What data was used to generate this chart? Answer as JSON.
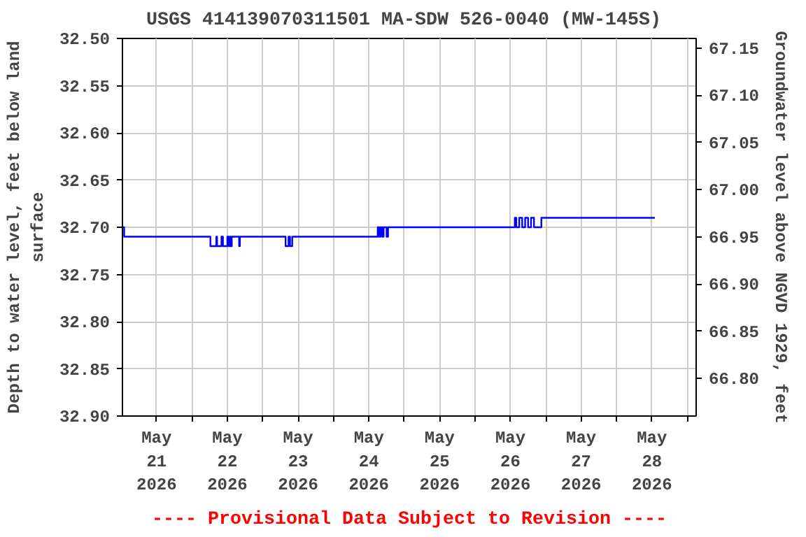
{
  "chart_data": {
    "type": "step",
    "title": "USGS 414139070311501 MA-SDW  526-0040 (MW-145S)",
    "ylabel": "Depth to water level, feet below land\nsurface",
    "y2label": "Groundwater level above NGVD 1929, feet",
    "annotations": [
      "---- Provisional Data Subject to Revision ----"
    ],
    "x": [
      "2026-05-21T00:30",
      "2026-05-21T01:00",
      "2026-05-22T06:00",
      "2026-05-22T06:15",
      "2026-05-22T08:00",
      "2026-05-22T08:15",
      "2026-05-22T08:30",
      "2026-05-22T10:00",
      "2026-05-22T10:30",
      "2026-05-22T12:00",
      "2026-05-22T12:30",
      "2026-05-22T13:00",
      "2026-05-22T13:15",
      "2026-05-22T13:30",
      "2026-05-22T16:00",
      "2026-05-22T16:15",
      "2026-05-23T07:45",
      "2026-05-23T08:45",
      "2026-05-23T09:15",
      "2026-05-23T10:00",
      "2026-05-24T15:00",
      "2026-05-24T15:30",
      "2026-05-24T16:00",
      "2026-05-24T16:30",
      "2026-05-24T17:00",
      "2026-05-24T18:00",
      "2026-05-24T18:30",
      "2026-05-26T13:30",
      "2026-05-26T14:00",
      "2026-05-26T15:00",
      "2026-05-26T16:00",
      "2026-05-26T17:00",
      "2026-05-26T18:00",
      "2026-05-26T19:00",
      "2026-05-26T20:00",
      "2026-05-26T22:30",
      "2026-05-28T13:00"
    ],
    "series": [
      {
        "color": "#0000ff",
        "values": [
          32.7,
          32.71,
          32.71,
          32.72,
          32.72,
          32.71,
          32.72,
          32.71,
          32.72,
          32.71,
          32.72,
          32.71,
          32.72,
          32.71,
          32.72,
          32.71,
          32.72,
          32.71,
          32.72,
          32.71,
          32.7,
          32.71,
          32.7,
          32.71,
          32.7,
          32.71,
          32.7,
          32.69,
          32.7,
          32.69,
          32.7,
          32.69,
          32.7,
          32.69,
          32.7,
          32.69,
          32.69
        ]
      }
    ],
    "xlim": [
      "2026-05-21T00:25",
      "2026-05-29T03:00"
    ],
    "xticks": [
      {
        "value": "2026-05-21T12:00",
        "label": "May\n21\n2026"
      },
      {
        "value": "2026-05-22T00:00",
        "label": null
      },
      {
        "value": "2026-05-22T12:00",
        "label": "May\n22\n2026"
      },
      {
        "value": "2026-05-23T00:00",
        "label": null
      },
      {
        "value": "2026-05-23T12:00",
        "label": "May\n23\n2026"
      },
      {
        "value": "2026-05-24T00:00",
        "label": null
      },
      {
        "value": "2026-05-24T12:00",
        "label": "May\n24\n2026"
      },
      {
        "value": "2026-05-25T00:00",
        "label": null
      },
      {
        "value": "2026-05-25T12:00",
        "label": "May\n25\n2026"
      },
      {
        "value": "2026-05-26T00:00",
        "label": null
      },
      {
        "value": "2026-05-26T12:00",
        "label": "May\n26\n2026"
      },
      {
        "value": "2026-05-27T00:00",
        "label": null
      },
      {
        "value": "2026-05-27T12:00",
        "label": "May\n27\n2026"
      },
      {
        "value": "2026-05-28T00:00",
        "label": null
      },
      {
        "value": "2026-05-28T12:00",
        "label": "May\n28\n2026"
      },
      {
        "value": "2026-05-29T00:00",
        "label": null
      }
    ],
    "ylim": [
      32.9,
      32.5
    ],
    "yticks": [
      {
        "value": 32.5,
        "label": "32.50"
      },
      {
        "value": 32.55,
        "label": "32.55"
      },
      {
        "value": 32.6,
        "label": "32.60"
      },
      {
        "value": 32.65,
        "label": "32.65"
      },
      {
        "value": 32.7,
        "label": "32.70"
      },
      {
        "value": 32.75,
        "label": "32.75"
      },
      {
        "value": 32.8,
        "label": "32.80"
      },
      {
        "value": 32.85,
        "label": "32.85"
      },
      {
        "value": 32.9,
        "label": "32.90"
      }
    ],
    "y2lim": [
      66.76,
      67.16
    ],
    "y2ticks": [
      {
        "value": 66.8,
        "label": "66.80"
      },
      {
        "value": 66.85,
        "label": "66.85"
      },
      {
        "value": 66.9,
        "label": "66.90"
      },
      {
        "value": 66.95,
        "label": "66.95"
      },
      {
        "value": 67.0,
        "label": "67.00"
      },
      {
        "value": 67.05,
        "label": "67.05"
      },
      {
        "value": 67.1,
        "label": "67.10"
      },
      {
        "value": 67.15,
        "label": "67.15"
      }
    ],
    "grid": true,
    "marker": "none",
    "line_style": "solid"
  }
}
